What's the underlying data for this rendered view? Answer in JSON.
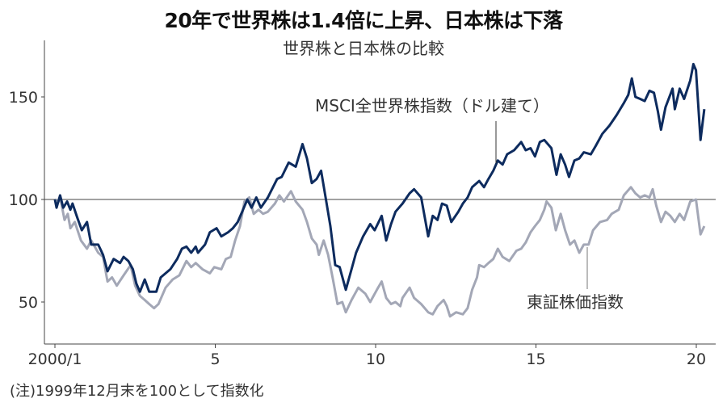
{
  "chart_data": {
    "type": "line",
    "title": "20年で世界株は1.4倍に上昇、日本株は下落",
    "subtitle": "世界株と日本株の比較",
    "note": "(注)1999年12月末を100として指数化",
    "xlabel": "",
    "ylabel": "",
    "xlim": [
      1999.9,
      2020.6
    ],
    "ylim": [
      30,
      178
    ],
    "x_ticks": [
      {
        "value": 2000,
        "label": "2000/1"
      },
      {
        "value": 2005,
        "label": "5"
      },
      {
        "value": 2010,
        "label": "10"
      },
      {
        "value": 2015,
        "label": "15"
      },
      {
        "value": 2020,
        "label": "20"
      }
    ],
    "y_ticks": [
      {
        "value": 50,
        "label": "50"
      },
      {
        "value": 100,
        "label": "100"
      },
      {
        "value": 150,
        "label": "150"
      }
    ],
    "reference_line": 100,
    "grid": false,
    "legend": "none (direct labels)",
    "series": [
      {
        "name": "MSCI全世界株指数（ドル建て）",
        "color": "#0d2b5e",
        "points": [
          [
            2000.0,
            100
          ],
          [
            2000.05,
            96
          ],
          [
            2000.16,
            102
          ],
          [
            2000.26,
            96
          ],
          [
            2000.38,
            99
          ],
          [
            2000.48,
            95
          ],
          [
            2000.55,
            98
          ],
          [
            2000.7,
            91
          ],
          [
            2000.84,
            85
          ],
          [
            2001.0,
            89
          ],
          [
            2001.13,
            78
          ],
          [
            2001.35,
            78
          ],
          [
            2001.5,
            73
          ],
          [
            2001.64,
            65
          ],
          [
            2001.83,
            71
          ],
          [
            2002.03,
            69
          ],
          [
            2002.14,
            72
          ],
          [
            2002.29,
            70
          ],
          [
            2002.43,
            66
          ],
          [
            2002.54,
            59
          ],
          [
            2002.65,
            55
          ],
          [
            2002.8,
            61
          ],
          [
            2002.94,
            55
          ],
          [
            2003.16,
            55
          ],
          [
            2003.3,
            62
          ],
          [
            2003.6,
            66
          ],
          [
            2003.81,
            71
          ],
          [
            2003.96,
            76
          ],
          [
            2004.1,
            77
          ],
          [
            2004.25,
            74
          ],
          [
            2004.39,
            77
          ],
          [
            2004.46,
            74
          ],
          [
            2004.68,
            78
          ],
          [
            2004.83,
            84
          ],
          [
            2005.04,
            86
          ],
          [
            2005.19,
            82
          ],
          [
            2005.4,
            84
          ],
          [
            2005.55,
            86
          ],
          [
            2005.7,
            89
          ],
          [
            2005.84,
            94
          ],
          [
            2006.0,
            100
          ],
          [
            2006.13,
            96
          ],
          [
            2006.28,
            101
          ],
          [
            2006.42,
            96
          ],
          [
            2006.64,
            101
          ],
          [
            2006.93,
            110
          ],
          [
            2007.07,
            111
          ],
          [
            2007.29,
            118
          ],
          [
            2007.51,
            116
          ],
          [
            2007.72,
            127
          ],
          [
            2007.86,
            120
          ],
          [
            2008.01,
            108
          ],
          [
            2008.16,
            110
          ],
          [
            2008.3,
            114
          ],
          [
            2008.45,
            100
          ],
          [
            2008.59,
            87
          ],
          [
            2008.74,
            68
          ],
          [
            2008.88,
            67
          ],
          [
            2009.07,
            56
          ],
          [
            2009.25,
            66
          ],
          [
            2009.39,
            74
          ],
          [
            2009.61,
            82
          ],
          [
            2009.83,
            88
          ],
          [
            2009.97,
            85
          ],
          [
            2010.19,
            92
          ],
          [
            2010.33,
            80
          ],
          [
            2010.48,
            88
          ],
          [
            2010.62,
            94
          ],
          [
            2010.84,
            98
          ],
          [
            2011.06,
            103
          ],
          [
            2011.2,
            105
          ],
          [
            2011.42,
            101
          ],
          [
            2011.64,
            82
          ],
          [
            2011.78,
            92
          ],
          [
            2011.93,
            90
          ],
          [
            2012.07,
            98
          ],
          [
            2012.22,
            97
          ],
          [
            2012.36,
            89
          ],
          [
            2012.58,
            94
          ],
          [
            2012.72,
            98
          ],
          [
            2012.87,
            101
          ],
          [
            2013.01,
            106
          ],
          [
            2013.23,
            109
          ],
          [
            2013.38,
            106
          ],
          [
            2013.52,
            110
          ],
          [
            2013.67,
            114
          ],
          [
            2013.81,
            119
          ],
          [
            2013.96,
            117
          ],
          [
            2014.1,
            122
          ],
          [
            2014.32,
            124
          ],
          [
            2014.54,
            128
          ],
          [
            2014.68,
            124
          ],
          [
            2014.83,
            125
          ],
          [
            2014.97,
            121
          ],
          [
            2015.12,
            128
          ],
          [
            2015.26,
            129
          ],
          [
            2015.48,
            125
          ],
          [
            2015.64,
            112
          ],
          [
            2015.77,
            122
          ],
          [
            2015.91,
            117
          ],
          [
            2016.03,
            111
          ],
          [
            2016.2,
            119
          ],
          [
            2016.35,
            120
          ],
          [
            2016.49,
            123
          ],
          [
            2016.71,
            122
          ],
          [
            2016.86,
            126
          ],
          [
            2017.07,
            132
          ],
          [
            2017.29,
            136
          ],
          [
            2017.51,
            141
          ],
          [
            2017.74,
            147
          ],
          [
            2017.88,
            151
          ],
          [
            2017.99,
            159
          ],
          [
            2018.1,
            150
          ],
          [
            2018.25,
            149
          ],
          [
            2018.39,
            148
          ],
          [
            2018.54,
            153
          ],
          [
            2018.68,
            152
          ],
          [
            2018.8,
            143
          ],
          [
            2018.9,
            134
          ],
          [
            2019.04,
            145
          ],
          [
            2019.26,
            154
          ],
          [
            2019.33,
            144
          ],
          [
            2019.48,
            154
          ],
          [
            2019.62,
            149
          ],
          [
            2019.81,
            158
          ],
          [
            2019.91,
            166
          ],
          [
            2019.99,
            163
          ],
          [
            2020.13,
            129
          ],
          [
            2020.25,
            144
          ]
        ]
      },
      {
        "name": "東証株価指数",
        "color": "#a3a7b6",
        "points": [
          [
            2000.0,
            100
          ],
          [
            2000.19,
            99
          ],
          [
            2000.3,
            90
          ],
          [
            2000.4,
            93
          ],
          [
            2000.48,
            86
          ],
          [
            2000.62,
            89
          ],
          [
            2000.81,
            80
          ],
          [
            2001.0,
            76
          ],
          [
            2001.13,
            80
          ],
          [
            2001.35,
            74
          ],
          [
            2001.5,
            72
          ],
          [
            2001.64,
            60
          ],
          [
            2001.78,
            62
          ],
          [
            2001.93,
            58
          ],
          [
            2002.14,
            63
          ],
          [
            2002.36,
            68
          ],
          [
            2002.5,
            58
          ],
          [
            2002.65,
            53
          ],
          [
            2002.8,
            51
          ],
          [
            2002.94,
            49
          ],
          [
            2003.09,
            47
          ],
          [
            2003.23,
            49
          ],
          [
            2003.45,
            57
          ],
          [
            2003.67,
            61
          ],
          [
            2003.88,
            63
          ],
          [
            2004.1,
            70
          ],
          [
            2004.25,
            67
          ],
          [
            2004.39,
            69
          ],
          [
            2004.6,
            66
          ],
          [
            2004.83,
            64
          ],
          [
            2004.97,
            67
          ],
          [
            2005.19,
            66
          ],
          [
            2005.33,
            71
          ],
          [
            2005.48,
            72
          ],
          [
            2005.62,
            80
          ],
          [
            2005.77,
            87
          ],
          [
            2005.91,
            99
          ],
          [
            2006.06,
            101
          ],
          [
            2006.2,
            93
          ],
          [
            2006.35,
            95
          ],
          [
            2006.49,
            93
          ],
          [
            2006.64,
            94
          ],
          [
            2006.86,
            98
          ],
          [
            2007.0,
            102
          ],
          [
            2007.14,
            99
          ],
          [
            2007.36,
            104
          ],
          [
            2007.51,
            99
          ],
          [
            2007.72,
            95
          ],
          [
            2007.86,
            89
          ],
          [
            2008.01,
            81
          ],
          [
            2008.16,
            78
          ],
          [
            2008.23,
            73
          ],
          [
            2008.38,
            80
          ],
          [
            2008.52,
            73
          ],
          [
            2008.67,
            61
          ],
          [
            2008.81,
            49
          ],
          [
            2008.96,
            50
          ],
          [
            2009.07,
            45
          ],
          [
            2009.25,
            51
          ],
          [
            2009.46,
            57
          ],
          [
            2009.68,
            54
          ],
          [
            2009.83,
            50
          ],
          [
            2010.04,
            56
          ],
          [
            2010.19,
            60
          ],
          [
            2010.33,
            52
          ],
          [
            2010.48,
            49
          ],
          [
            2010.62,
            50
          ],
          [
            2010.77,
            48
          ],
          [
            2010.84,
            52
          ],
          [
            2011.06,
            57
          ],
          [
            2011.2,
            52
          ],
          [
            2011.42,
            49
          ],
          [
            2011.64,
            45
          ],
          [
            2011.78,
            44
          ],
          [
            2011.93,
            48
          ],
          [
            2012.12,
            51
          ],
          [
            2012.22,
            48
          ],
          [
            2012.32,
            43
          ],
          [
            2012.51,
            45
          ],
          [
            2012.72,
            44
          ],
          [
            2012.87,
            47
          ],
          [
            2013.01,
            56
          ],
          [
            2013.16,
            62
          ],
          [
            2013.23,
            68
          ],
          [
            2013.38,
            67
          ],
          [
            2013.52,
            69
          ],
          [
            2013.67,
            71
          ],
          [
            2013.81,
            76
          ],
          [
            2013.96,
            72
          ],
          [
            2014.17,
            70
          ],
          [
            2014.39,
            75
          ],
          [
            2014.54,
            76
          ],
          [
            2014.68,
            79
          ],
          [
            2014.83,
            84
          ],
          [
            2014.97,
            87
          ],
          [
            2015.12,
            90
          ],
          [
            2015.26,
            95
          ],
          [
            2015.33,
            99
          ],
          [
            2015.48,
            96
          ],
          [
            2015.62,
            85
          ],
          [
            2015.77,
            93
          ],
          [
            2015.91,
            85
          ],
          [
            2016.06,
            78
          ],
          [
            2016.2,
            80
          ],
          [
            2016.35,
            74
          ],
          [
            2016.49,
            78
          ],
          [
            2016.64,
            78
          ],
          [
            2016.78,
            85
          ],
          [
            2017.0,
            89
          ],
          [
            2017.22,
            90
          ],
          [
            2017.36,
            93
          ],
          [
            2017.58,
            95
          ],
          [
            2017.74,
            102
          ],
          [
            2017.96,
            106
          ],
          [
            2018.1,
            103
          ],
          [
            2018.25,
            101
          ],
          [
            2018.39,
            102
          ],
          [
            2018.54,
            101
          ],
          [
            2018.64,
            105
          ],
          [
            2018.75,
            97
          ],
          [
            2018.9,
            89
          ],
          [
            2019.04,
            94
          ],
          [
            2019.19,
            92
          ],
          [
            2019.33,
            89
          ],
          [
            2019.48,
            93
          ],
          [
            2019.62,
            90
          ],
          [
            2019.81,
            99
          ],
          [
            2019.99,
            100
          ],
          [
            2020.13,
            83
          ],
          [
            2020.25,
            87
          ]
        ]
      }
    ]
  }
}
